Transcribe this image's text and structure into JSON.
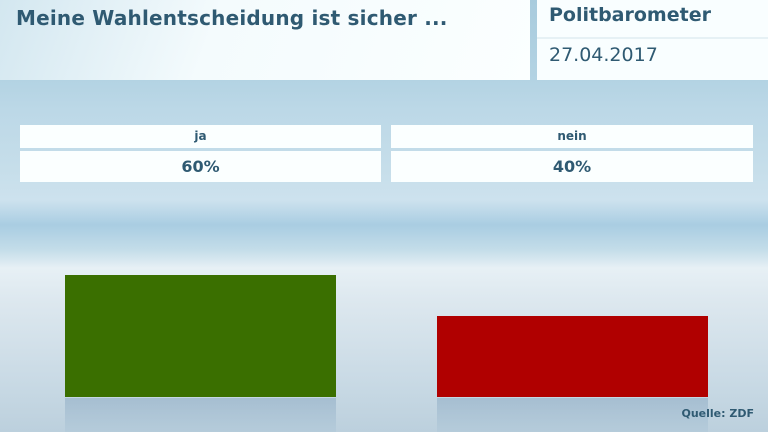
{
  "header": {
    "title": "Meine Wahlentscheidung ist sicher ...",
    "brand": "Politbarometer",
    "date": "27.04.2017"
  },
  "table": {
    "columns": [
      {
        "label": "ja",
        "value": "60%"
      },
      {
        "label": "nein",
        "value": "40%"
      }
    ]
  },
  "source": "Quelle: ZDF",
  "colors": {
    "ja": "#3a6f00",
    "nein": "#b00000",
    "text": "#2f5a72"
  },
  "chart_data": {
    "type": "bar",
    "title": "Meine Wahlentscheidung ist sicher ...",
    "subtitle": "Politbarometer 27.04.2017",
    "categories": [
      "ja",
      "nein"
    ],
    "values": [
      60,
      40
    ],
    "unit": "%",
    "colors": [
      "#3a6f00",
      "#b00000"
    ],
    "xlabel": "",
    "ylabel": "",
    "grid": false,
    "legend": "none",
    "source": "Quelle: ZDF"
  }
}
